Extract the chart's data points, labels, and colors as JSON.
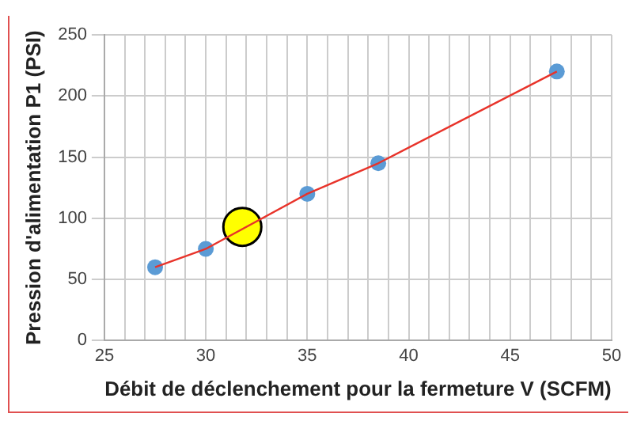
{
  "chart_data": {
    "type": "line",
    "xlabel": "Débit de déclenchement pour la fermeture V (SCFM)",
    "ylabel": "Pression d'alimentation P1 (PSI)",
    "xlim": [
      25,
      50
    ],
    "xticks": [
      25,
      {
        "value": 26,
        "label": null
      },
      {
        "value": 27,
        "label": null
      },
      {
        "value": 28,
        "label": null
      },
      {
        "value": 29,
        "label": null
      },
      30,
      {
        "value": 31,
        "label": null
      },
      {
        "value": 32,
        "label": null
      },
      {
        "value": 33,
        "label": null
      },
      {
        "value": 34,
        "label": null
      },
      35,
      {
        "value": 36,
        "label": null
      },
      {
        "value": 37,
        "label": null
      },
      {
        "value": 38,
        "label": null
      },
      {
        "value": 39,
        "label": null
      },
      40,
      {
        "value": 41,
        "label": null
      },
      {
        "value": 42,
        "label": null
      },
      {
        "value": 43,
        "label": null
      },
      {
        "value": 44,
        "label": null
      },
      45,
      {
        "value": 46,
        "label": null
      },
      {
        "value": 47,
        "label": null
      },
      {
        "value": 48,
        "label": null
      },
      {
        "value": 49,
        "label": null
      },
      50
    ],
    "ylim": [
      0,
      250
    ],
    "yticks": [
      0,
      50,
      100,
      150,
      200,
      250
    ],
    "grid": true,
    "legend": false,
    "series": [
      {
        "color": "#e8332a",
        "marker": "none",
        "x": [
          27.5,
          30,
          35,
          38.5,
          47.3
        ],
        "values": [
          60,
          75,
          120,
          145,
          220
        ]
      },
      {
        "type": "scatter",
        "color": "#5b9bd5",
        "marker": "circle",
        "x": [
          27.5,
          30,
          35,
          38.5,
          47.3
        ],
        "values": [
          60,
          75,
          120,
          145,
          220
        ]
      },
      {
        "type": "bubble",
        "color": "#ffff00",
        "x": [
          31.8
        ],
        "values": [
          93
        ],
        "sizes": [
          1
        ]
      }
    ]
  }
}
